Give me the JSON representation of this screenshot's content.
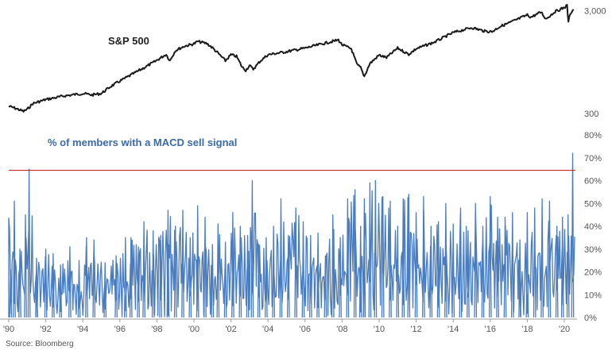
{
  "chart_data": [
    {
      "type": "line",
      "name": "S&P 500",
      "label": "S&P 500",
      "scale": "log",
      "y_ticks": [
        {
          "value": 300,
          "label": "300"
        },
        {
          "value": 3000,
          "label": "3,000"
        }
      ],
      "ylim": [
        300,
        3200
      ],
      "series": [
        {
          "color": "#1a1a1a",
          "points": [
            {
              "x": 1990.0,
              "y": 353
            },
            {
              "x": 1990.3,
              "y": 340
            },
            {
              "x": 1990.6,
              "y": 325
            },
            {
              "x": 1990.8,
              "y": 315
            },
            {
              "x": 1991.0,
              "y": 330
            },
            {
              "x": 1991.3,
              "y": 375
            },
            {
              "x": 1992.0,
              "y": 410
            },
            {
              "x": 1993.0,
              "y": 445
            },
            {
              "x": 1994.0,
              "y": 470
            },
            {
              "x": 1994.5,
              "y": 455
            },
            {
              "x": 1995.0,
              "y": 470
            },
            {
              "x": 1995.5,
              "y": 550
            },
            {
              "x": 1996.0,
              "y": 620
            },
            {
              "x": 1997.0,
              "y": 780
            },
            {
              "x": 1997.8,
              "y": 940
            },
            {
              "x": 1998.5,
              "y": 1130
            },
            {
              "x": 1998.7,
              "y": 980
            },
            {
              "x": 1999.0,
              "y": 1230
            },
            {
              "x": 1999.5,
              "y": 1360
            },
            {
              "x": 2000.0,
              "y": 1430
            },
            {
              "x": 2000.2,
              "y": 1510
            },
            {
              "x": 2000.7,
              "y": 1440
            },
            {
              "x": 2001.0,
              "y": 1310
            },
            {
              "x": 2001.3,
              "y": 1160
            },
            {
              "x": 2001.7,
              "y": 980
            },
            {
              "x": 2002.0,
              "y": 1120
            },
            {
              "x": 2002.3,
              "y": 1080
            },
            {
              "x": 2002.6,
              "y": 850
            },
            {
              "x": 2002.8,
              "y": 790
            },
            {
              "x": 2003.0,
              "y": 880
            },
            {
              "x": 2003.2,
              "y": 810
            },
            {
              "x": 2003.6,
              "y": 980
            },
            {
              "x": 2004.0,
              "y": 1120
            },
            {
              "x": 2005.0,
              "y": 1200
            },
            {
              "x": 2006.0,
              "y": 1300
            },
            {
              "x": 2007.0,
              "y": 1440
            },
            {
              "x": 2007.8,
              "y": 1560
            },
            {
              "x": 2008.0,
              "y": 1400
            },
            {
              "x": 2008.5,
              "y": 1280
            },
            {
              "x": 2008.8,
              "y": 900
            },
            {
              "x": 2009.0,
              "y": 840
            },
            {
              "x": 2009.2,
              "y": 690
            },
            {
              "x": 2009.5,
              "y": 920
            },
            {
              "x": 2010.0,
              "y": 1110
            },
            {
              "x": 2010.4,
              "y": 1050
            },
            {
              "x": 2011.0,
              "y": 1300
            },
            {
              "x": 2011.6,
              "y": 1130
            },
            {
              "x": 2012.0,
              "y": 1280
            },
            {
              "x": 2013.0,
              "y": 1490
            },
            {
              "x": 2014.0,
              "y": 1840
            },
            {
              "x": 2015.0,
              "y": 2060
            },
            {
              "x": 2015.7,
              "y": 1900
            },
            {
              "x": 2016.1,
              "y": 1880
            },
            {
              "x": 2016.5,
              "y": 2100
            },
            {
              "x": 2017.0,
              "y": 2280
            },
            {
              "x": 2018.0,
              "y": 2730
            },
            {
              "x": 2018.2,
              "y": 2600
            },
            {
              "x": 2018.75,
              "y": 2920
            },
            {
              "x": 2019.0,
              "y": 2500
            },
            {
              "x": 2019.5,
              "y": 2950
            },
            {
              "x": 2020.0,
              "y": 3230
            },
            {
              "x": 2020.15,
              "y": 3380
            },
            {
              "x": 2020.22,
              "y": 2300
            },
            {
              "x": 2020.3,
              "y": 2800
            },
            {
              "x": 2020.5,
              "y": 3100
            }
          ]
        }
      ]
    },
    {
      "type": "area",
      "name": "% of members with a MACD sell signal",
      "label": "% of members with a MACD sell signal",
      "ylim": [
        0,
        80
      ],
      "y_ticks": [
        {
          "value": 0,
          "label": "0%"
        },
        {
          "value": 10,
          "label": "10%"
        },
        {
          "value": 20,
          "label": "20%"
        },
        {
          "value": 30,
          "label": "30%"
        },
        {
          "value": 40,
          "label": "40%"
        },
        {
          "value": 50,
          "label": "50%"
        },
        {
          "value": 60,
          "label": "60%"
        },
        {
          "value": 70,
          "label": "70%"
        },
        {
          "value": 80,
          "label": "80%"
        }
      ],
      "threshold": {
        "value": 64.5,
        "color": "#c62828"
      },
      "series": [
        {
          "color": "#4a7dbf",
          "peaks": [
            {
              "x": 1990.1,
              "y": 21
            },
            {
              "x": 1990.3,
              "y": 51
            },
            {
              "x": 1990.6,
              "y": 30
            },
            {
              "x": 1990.9,
              "y": 45
            },
            {
              "x": 1991.1,
              "y": 65
            },
            {
              "x": 1991.5,
              "y": 26
            },
            {
              "x": 1992.0,
              "y": 30
            },
            {
              "x": 1992.4,
              "y": 28
            },
            {
              "x": 1992.8,
              "y": 23
            },
            {
              "x": 1993.3,
              "y": 31
            },
            {
              "x": 1993.8,
              "y": 25
            },
            {
              "x": 1994.2,
              "y": 35
            },
            {
              "x": 1994.6,
              "y": 34
            },
            {
              "x": 1995.2,
              "y": 24
            },
            {
              "x": 1995.8,
              "y": 27
            },
            {
              "x": 1996.3,
              "y": 35
            },
            {
              "x": 1996.6,
              "y": 35
            },
            {
              "x": 1997.0,
              "y": 31
            },
            {
              "x": 1997.3,
              "y": 42
            },
            {
              "x": 1997.8,
              "y": 38
            },
            {
              "x": 1998.2,
              "y": 36
            },
            {
              "x": 1998.6,
              "y": 47
            },
            {
              "x": 1999.0,
              "y": 40
            },
            {
              "x": 1999.4,
              "y": 47
            },
            {
              "x": 1999.8,
              "y": 35
            },
            {
              "x": 2000.2,
              "y": 49
            },
            {
              "x": 2000.6,
              "y": 44
            },
            {
              "x": 2001.0,
              "y": 32
            },
            {
              "x": 2001.3,
              "y": 41
            },
            {
              "x": 2001.7,
              "y": 33
            },
            {
              "x": 2002.1,
              "y": 46
            },
            {
              "x": 2002.5,
              "y": 40
            },
            {
              "x": 2002.9,
              "y": 36
            },
            {
              "x": 2003.15,
              "y": 60
            },
            {
              "x": 2003.5,
              "y": 32
            },
            {
              "x": 2003.9,
              "y": 35
            },
            {
              "x": 2004.3,
              "y": 40
            },
            {
              "x": 2004.7,
              "y": 52
            },
            {
              "x": 2005.1,
              "y": 36
            },
            {
              "x": 2005.5,
              "y": 48
            },
            {
              "x": 2005.9,
              "y": 42
            },
            {
              "x": 2006.3,
              "y": 36
            },
            {
              "x": 2006.7,
              "y": 37
            },
            {
              "x": 2007.1,
              "y": 27
            },
            {
              "x": 2007.5,
              "y": 45
            },
            {
              "x": 2007.9,
              "y": 35
            },
            {
              "x": 2008.3,
              "y": 52
            },
            {
              "x": 2008.7,
              "y": 56
            },
            {
              "x": 2009.0,
              "y": 40
            },
            {
              "x": 2009.2,
              "y": 52
            },
            {
              "x": 2009.5,
              "y": 59
            },
            {
              "x": 2009.8,
              "y": 60
            },
            {
              "x": 2010.2,
              "y": 53
            },
            {
              "x": 2010.6,
              "y": 51
            },
            {
              "x": 2011.0,
              "y": 40
            },
            {
              "x": 2011.3,
              "y": 52
            },
            {
              "x": 2011.6,
              "y": 54
            },
            {
              "x": 2012.0,
              "y": 46
            },
            {
              "x": 2012.4,
              "y": 53
            },
            {
              "x": 2012.8,
              "y": 40
            },
            {
              "x": 2013.2,
              "y": 42
            },
            {
              "x": 2013.6,
              "y": 50
            },
            {
              "x": 2014.0,
              "y": 41
            },
            {
              "x": 2014.4,
              "y": 48
            },
            {
              "x": 2014.8,
              "y": 38
            },
            {
              "x": 2015.2,
              "y": 50
            },
            {
              "x": 2015.6,
              "y": 40
            },
            {
              "x": 2016.0,
              "y": 53
            },
            {
              "x": 2016.4,
              "y": 44
            },
            {
              "x": 2016.8,
              "y": 44
            },
            {
              "x": 2017.2,
              "y": 46
            },
            {
              "x": 2017.6,
              "y": 34
            },
            {
              "x": 2018.0,
              "y": 46
            },
            {
              "x": 2018.4,
              "y": 48
            },
            {
              "x": 2018.8,
              "y": 52
            },
            {
              "x": 2019.2,
              "y": 51
            },
            {
              "x": 2019.6,
              "y": 40
            },
            {
              "x": 2019.9,
              "y": 44
            },
            {
              "x": 2020.2,
              "y": 45
            },
            {
              "x": 2020.45,
              "y": 72
            }
          ]
        }
      ]
    }
  ],
  "x_axis": {
    "xlim": [
      1990.0,
      2020.6
    ],
    "ticks": [
      {
        "value": 1990,
        "label": "'90"
      },
      {
        "value": 1992,
        "label": "'92"
      },
      {
        "value": 1994,
        "label": "'94"
      },
      {
        "value": 1996,
        "label": "'96"
      },
      {
        "value": 1998,
        "label": "'98"
      },
      {
        "value": 2000,
        "label": "'00"
      },
      {
        "value": 2002,
        "label": "'02"
      },
      {
        "value": 2004,
        "label": "'04"
      },
      {
        "value": 2006,
        "label": "'06"
      },
      {
        "value": 2008,
        "label": "'08"
      },
      {
        "value": 2010,
        "label": "'10"
      },
      {
        "value": 2012,
        "label": "'12"
      },
      {
        "value": 2014,
        "label": "'14"
      },
      {
        "value": 2016,
        "label": "'16"
      },
      {
        "value": 2018,
        "label": "'18"
      },
      {
        "value": 2020,
        "label": "'20"
      }
    ]
  },
  "source": "Source: Bloomberg"
}
